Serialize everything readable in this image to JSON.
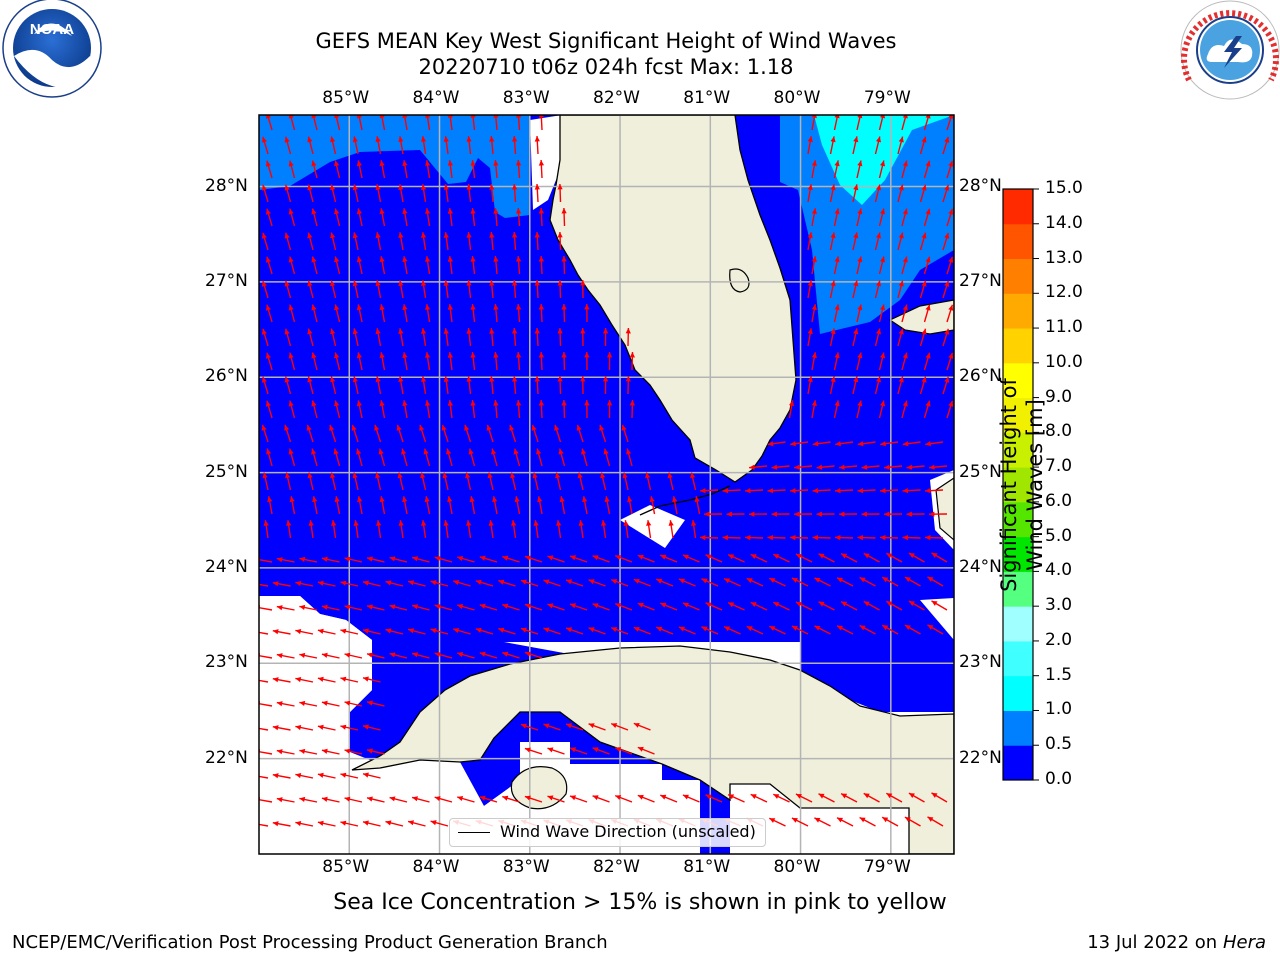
{
  "header": {
    "title_line1": "GEFS MEAN Key West Significant Height of Wind Waves",
    "title_line2": "20220710 t06z 024h fcst    Max: 1.18"
  },
  "logos": {
    "left": {
      "icon": "noaa-logo",
      "text": "NOAA"
    },
    "right": {
      "icon": "national-weather-service-logo",
      "text": "NATIONAL WEATHER SERVICE"
    }
  },
  "map": {
    "lon_labels": [
      "85°W",
      "84°W",
      "83°W",
      "82°W",
      "81°W",
      "80°W",
      "79°W"
    ],
    "lat_labels": [
      "28°N",
      "27°N",
      "26°N",
      "25°N",
      "24°N",
      "23°N",
      "22°N"
    ],
    "lon_range": [
      -86,
      -78.3
    ],
    "lat_range": [
      21.0,
      28.75
    ],
    "colors": {
      "land": "#efefdc",
      "coast": "#000000",
      "grid": "#b4b4b4",
      "arrow": "#ff0000"
    },
    "legend_label": "Wind Wave Direction (unscaled)"
  },
  "colorbar": {
    "title": "Significant Height of Wind Waves [m]",
    "ticks": [
      "0.0",
      "0.5",
      "1.0",
      "1.5",
      "2.0",
      "3.0",
      "4.0",
      "5.0",
      "6.0",
      "7.0",
      "8.0",
      "9.0",
      "10.0",
      "11.0",
      "12.0",
      "13.0",
      "14.0",
      "15.0"
    ],
    "colors": [
      "#0000ff",
      "#0080ff",
      "#00ffff",
      "#40ffff",
      "#a0ffff",
      "#55ff80",
      "#00e600",
      "#55e600",
      "#a0e600",
      "#c8f000",
      "#f0f000",
      "#ffff00",
      "#ffd200",
      "#ffaa00",
      "#ff8000",
      "#ff5500",
      "#ff2a00"
    ]
  },
  "notes": {
    "sea_ice": "Sea Ice Concentration > 15% is shown in pink to yellow"
  },
  "footer": {
    "left": "NCEP/EMC/Verification Post Processing Product Generation Branch",
    "right_prefix": "13 Jul 2022 on ",
    "right_host": "Hera"
  }
}
